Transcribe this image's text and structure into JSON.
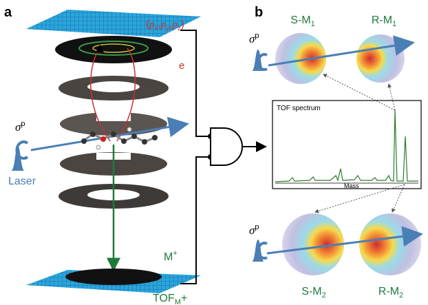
{
  "panel_a": {
    "label": "a",
    "momentum": {
      "open": "(",
      "p1": "p",
      "s1": "x",
      "c1": ",",
      "p2": "p",
      "s2": "y",
      "c2": ",",
      "p3": "p",
      "s3": "z",
      "close": ")"
    },
    "electron": "e",
    "sigma": {
      "base": "σ",
      "sup": "p"
    },
    "laser": "Laser",
    "ion": {
      "base": "M",
      "sup": "+"
    },
    "tof": {
      "base": "TOF",
      "sub": "M",
      "tail": "+"
    }
  },
  "panel_b": {
    "label": "b",
    "spectrum_title": "TOF spectrum",
    "spectrum_axis": "Mass",
    "spheres": [
      {
        "base": "S-M",
        "sub": "1"
      },
      {
        "base": "R-M",
        "sub": "1"
      },
      {
        "base": "S-M",
        "sub": "2"
      },
      {
        "base": "R-M",
        "sub": "2"
      }
    ],
    "sigma_top": {
      "base": "σ",
      "sup": "p"
    },
    "sigma_bottom": {
      "base": "σ",
      "sup": "p"
    }
  }
}
